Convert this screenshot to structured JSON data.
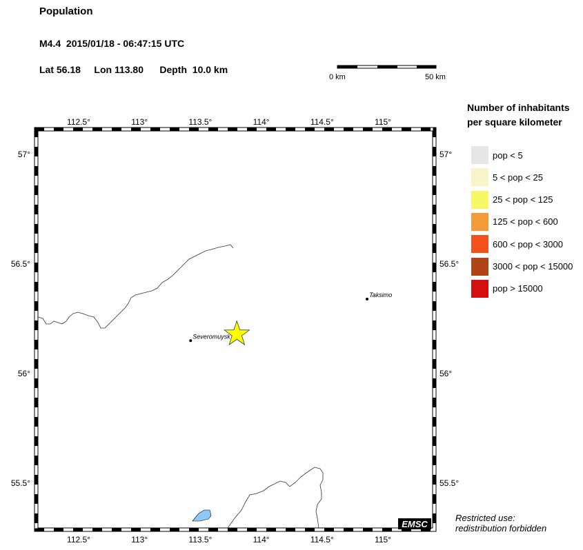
{
  "header": {
    "title": "Population",
    "event": "M4.4  2015/01/18 - 06:47:15 UTC",
    "lat_label": "Lat",
    "lat": "56.18",
    "lon_label": "Lon",
    "lon": "113.80",
    "depth_label": "Depth",
    "depth": "10.0 km"
  },
  "scalebar": {
    "start_label": "0 km",
    "end_label": "50 km"
  },
  "map": {
    "lon_ticks": [
      {
        "value": 112.5,
        "label": "112.5°"
      },
      {
        "value": 113.0,
        "label": "113°"
      },
      {
        "value": 113.5,
        "label": "113.5°"
      },
      {
        "value": 114.0,
        "label": "114°"
      },
      {
        "value": 114.5,
        "label": "114.5°"
      },
      {
        "value": 115.0,
        "label": "115°"
      }
    ],
    "lat_ticks": [
      {
        "value": 57.0,
        "label": "57°"
      },
      {
        "value": 56.5,
        "label": "56.5°"
      },
      {
        "value": 56.0,
        "label": "56°"
      },
      {
        "value": 55.5,
        "label": "55.5°"
      }
    ],
    "epicenter": {
      "lat": 56.18,
      "lon": 113.8,
      "color": "#ffff00"
    },
    "cities": [
      {
        "name": "Severomuysk",
        "lat": 56.15,
        "lon": 113.42
      },
      {
        "name": "Taksimo",
        "lat": 56.34,
        "lon": 114.87
      }
    ],
    "badge": "EMSC",
    "lake_color": "#8ec9f5"
  },
  "legend": {
    "title_line1": "Number of inhabitants",
    "title_line2": "per square kilometer",
    "items": [
      {
        "label": "pop < 5",
        "color": "#e6e6e6"
      },
      {
        "label": "5 < pop < 25",
        "color": "#f8f6c8"
      },
      {
        "label": "25 < pop < 125",
        "color": "#f8f866"
      },
      {
        "label": "125 < pop < 600",
        "color": "#f59a38"
      },
      {
        "label": "600 < pop < 3000",
        "color": "#f2511a"
      },
      {
        "label": "3000 < pop < 15000",
        "color": "#b04418"
      },
      {
        "label": "pop > 15000",
        "color": "#d40f0f"
      }
    ]
  },
  "footer": {
    "restricted_line1": "Restricted use:",
    "restricted_line2": "redistribution forbidden"
  }
}
